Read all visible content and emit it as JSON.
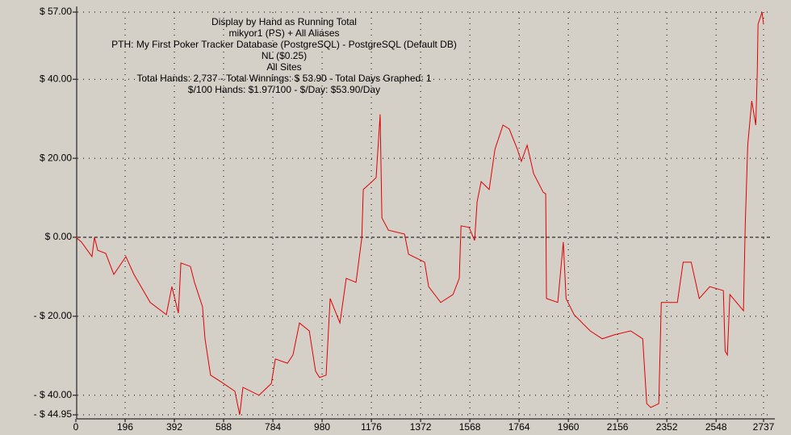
{
  "chart_data": {
    "type": "line",
    "title": [
      "Display by Hand as Running Total",
      "mikyor1 (PS) + All Aliases",
      "PTH: My First Poker Tracker Database (PostgreSQL) - PostgreSQL (Default DB)",
      "NL ($0.25)",
      "All Sites",
      "Total Hands: 2,737 - Total Winnings: $ 53.90 - Total Days Graphed: 1",
      "$/100 Hands: $1.97/100 - $/Day: $53.90/Day"
    ],
    "x": [
      0,
      22,
      64,
      74,
      87,
      119,
      151,
      199,
      231,
      296,
      360,
      382,
      408,
      418,
      456,
      472,
      504,
      514,
      536,
      585,
      633,
      652,
      665,
      729,
      778,
      794,
      842,
      864,
      890,
      929,
      954,
      970,
      996,
      1012,
      1051,
      1076,
      1115,
      1138,
      1144,
      1179,
      1195,
      1211,
      1218,
      1244,
      1308,
      1324,
      1388,
      1404,
      1452,
      1501,
      1526,
      1533,
      1565,
      1587,
      1597,
      1613,
      1645,
      1668,
      1700,
      1725,
      1757,
      1773,
      1796,
      1822,
      1860,
      1870,
      1873,
      1918,
      1940,
      1951,
      1983,
      2047,
      2095,
      2143,
      2208,
      2256,
      2272,
      2288,
      2320,
      2330,
      2394,
      2417,
      2449,
      2481,
      2523,
      2577,
      2584,
      2593,
      2603,
      2657,
      2664,
      2674,
      2690,
      2706,
      2712,
      2715,
      2731,
      2737
    ],
    "series": [
      {
        "name": "Running Total",
        "color": "#e00000",
        "values": [
          0,
          -1.2,
          -4.9,
          0,
          -3.3,
          -4.1,
          -9.4,
          -4.9,
          -9.4,
          -16.5,
          -19.6,
          -12.5,
          -19.2,
          -6.5,
          -7.4,
          -11.4,
          -17.6,
          -25.7,
          -34.9,
          -36.9,
          -39.0,
          -44.95,
          -38.0,
          -40.0,
          -37.0,
          -30.8,
          -31.9,
          -29.8,
          -21.7,
          -23.7,
          -33.9,
          -35.5,
          -34.9,
          -15.5,
          -21.7,
          -10.4,
          -11.4,
          -0.2,
          12.1,
          14.1,
          15.1,
          31.1,
          4.9,
          1.8,
          0.8,
          -4.3,
          -6.3,
          -12.5,
          -16.5,
          -14.5,
          -10.4,
          2.9,
          2.5,
          -0.8,
          9.0,
          14.1,
          12.1,
          22.3,
          28.4,
          27.4,
          22.3,
          19.2,
          23.3,
          16.1,
          11.4,
          11.0,
          -15.5,
          -16.5,
          -1.2,
          -15.5,
          -19.6,
          -23.7,
          -25.7,
          -24.7,
          -23.7,
          -25.7,
          -42.1,
          -43.1,
          -42.1,
          -16.5,
          -16.5,
          -6.3,
          -6.3,
          -15.5,
          -12.5,
          -13.5,
          -28.8,
          -29.8,
          -14.5,
          -18.6,
          2.9,
          23.3,
          34.5,
          28.4,
          41.7,
          53.9,
          57.0,
          53.9
        ]
      }
    ],
    "xlim": [
      0,
      2737
    ],
    "xticks": [
      0,
      196,
      392,
      588,
      784,
      980,
      1176,
      1372,
      1568,
      1764,
      1960,
      2156,
      2352,
      2548,
      2737
    ],
    "ylim": [
      -44.95,
      57
    ],
    "yticks": [
      {
        "value": 57,
        "label": "$ 57.00"
      },
      {
        "value": 40,
        "label": "$ 40.00"
      },
      {
        "value": 20,
        "label": "$ 20.00"
      },
      {
        "value": 0,
        "label": "$ 0.00"
      },
      {
        "value": -20,
        "label": "- $ 20.00"
      },
      {
        "value": -40,
        "label": "- $ 40.00"
      },
      {
        "value": -44.95,
        "label": "- $ 44.95"
      }
    ],
    "grid": true
  }
}
